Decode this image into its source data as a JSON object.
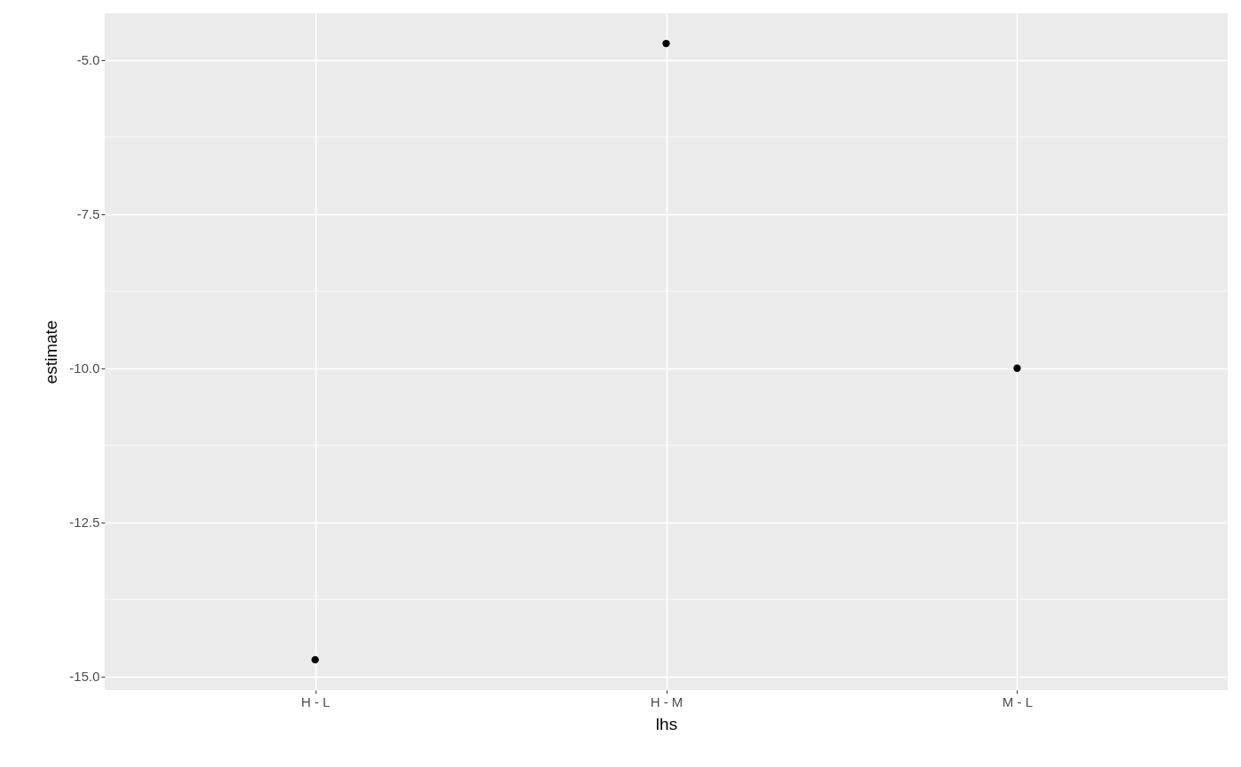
{
  "chart_data": {
    "type": "scatter",
    "xlabel": "lhs",
    "ylabel": "estimate",
    "categories": [
      "H - L",
      "H - M",
      "M - L"
    ],
    "values": [
      -14.73,
      -4.73,
      -10.0
    ],
    "color": "#000000",
    "ylim": [
      -15.22,
      -4.24
    ],
    "yticks": [
      {
        "value": -15,
        "label": "-15.0"
      },
      {
        "value": -12.5,
        "label": "-12.5"
      },
      {
        "value": -10,
        "label": "-10.0"
      },
      {
        "value": -7.5,
        "label": "-7.5"
      },
      {
        "value": -5,
        "label": "-5.0"
      }
    ],
    "grid": true,
    "marker": "circle"
  }
}
